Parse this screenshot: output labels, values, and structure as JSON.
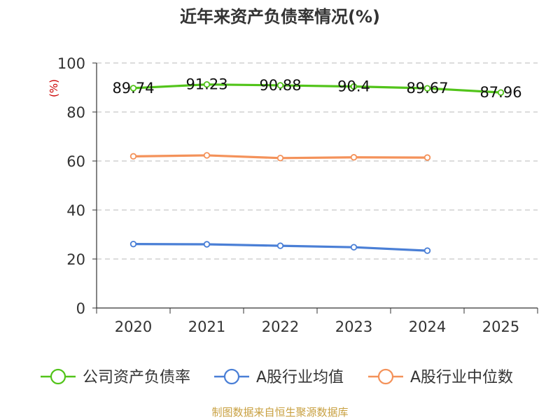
{
  "chart_data": {
    "type": "line",
    "title": "近年来资产负债率情况(%)",
    "ylabel": "(%)",
    "categories": [
      "2020",
      "2021",
      "2022",
      "2023",
      "2024",
      "2025"
    ],
    "ylim": [
      0,
      100
    ],
    "yticks": [
      0,
      20,
      40,
      60,
      80,
      100
    ],
    "grid": true,
    "legend_position": "bottom",
    "series": [
      {
        "name": "公司资产负债率",
        "color": "#52c41a",
        "values": [
          89.74,
          91.23,
          90.88,
          90.4,
          89.67,
          87.96
        ],
        "labels": [
          "89.74",
          "91.23",
          "90.88",
          "90.4",
          "89.67",
          "87.96"
        ]
      },
      {
        "name": "A股行业均值",
        "color": "#4a7fd6",
        "values": [
          26.1,
          26.0,
          25.4,
          24.8,
          23.4,
          null
        ]
      },
      {
        "name": "A股行业中位数",
        "color": "#f4925a",
        "values": [
          61.9,
          62.3,
          61.2,
          61.5,
          61.4,
          null
        ]
      }
    ],
    "source": "制图数据来自恒生聚源数据库"
  }
}
